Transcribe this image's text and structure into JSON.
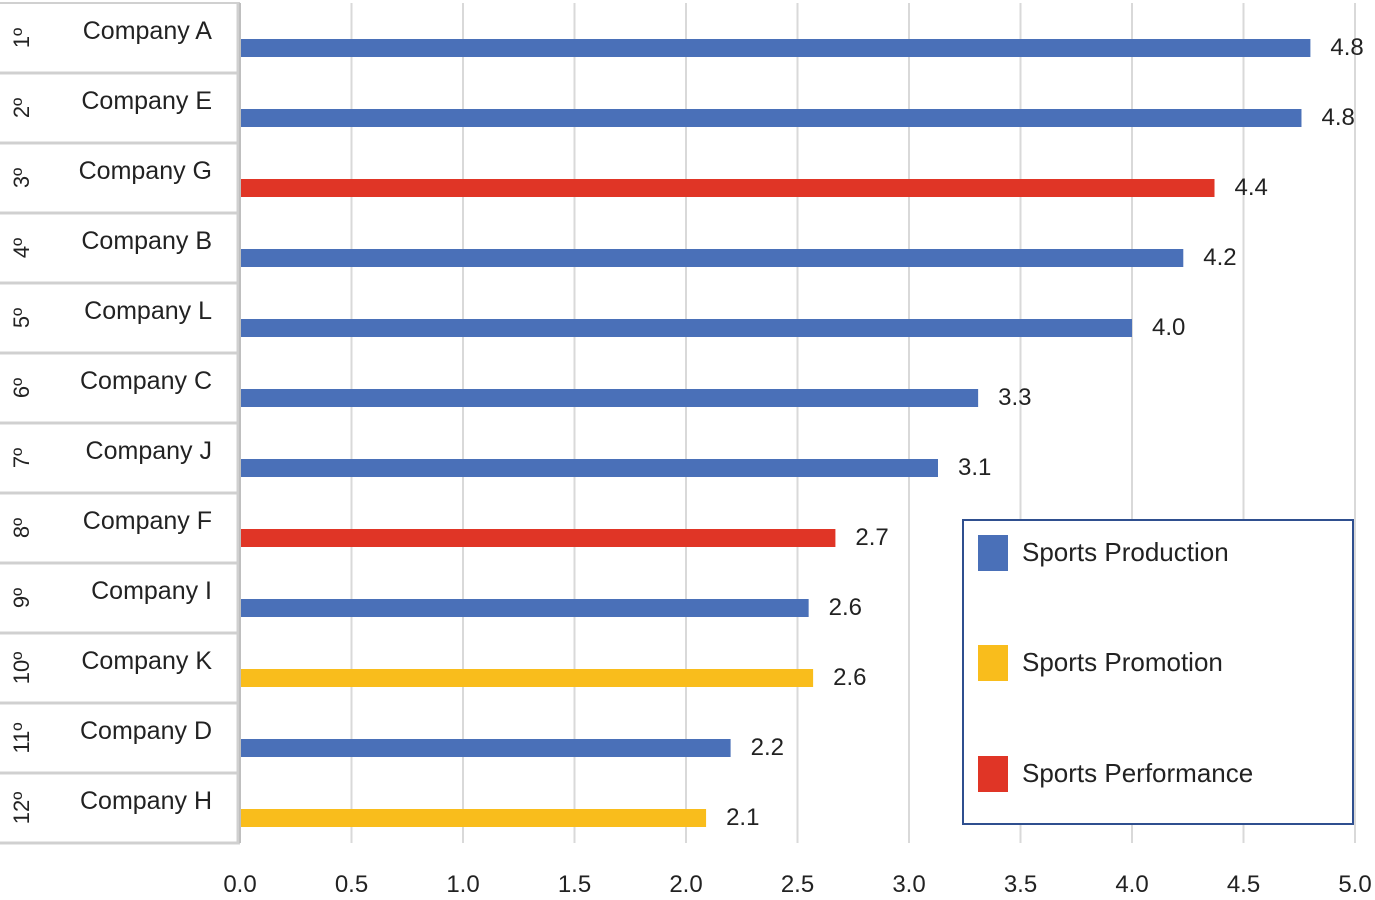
{
  "chart_data": {
    "type": "bar",
    "orientation": "horizontal",
    "rows": [
      {
        "rank": "1º",
        "company": "Company A",
        "value": 4.8,
        "label": "4.8",
        "series": "Sports Production"
      },
      {
        "rank": "2º",
        "company": "Company E",
        "value": 4.76,
        "label": "4.8",
        "series": "Sports Production"
      },
      {
        "rank": "3º",
        "company": "Company G",
        "value": 4.37,
        "label": "4.4",
        "series": "Sports Performance"
      },
      {
        "rank": "4º",
        "company": "Company B",
        "value": 4.23,
        "label": "4.2",
        "series": "Sports Production"
      },
      {
        "rank": "5º",
        "company": "Company L",
        "value": 4.0,
        "label": "4.0",
        "series": "Sports Production"
      },
      {
        "rank": "6º",
        "company": "Company C",
        "value": 3.31,
        "label": "3.3",
        "series": "Sports Production"
      },
      {
        "rank": "7º",
        "company": "Company J",
        "value": 3.13,
        "label": "3.1",
        "series": "Sports Production"
      },
      {
        "rank": "8º",
        "company": "Company F",
        "value": 2.67,
        "label": "2.7",
        "series": "Sports Performance"
      },
      {
        "rank": "9º",
        "company": "Company I",
        "value": 2.55,
        "label": "2.6",
        "series": "Sports Production"
      },
      {
        "rank": "10º",
        "company": "Company K",
        "value": 2.57,
        "label": "2.6",
        "series": "Sports Promotion"
      },
      {
        "rank": "11º",
        "company": "Company D",
        "value": 2.2,
        "label": "2.2",
        "series": "Sports Production"
      },
      {
        "rank": "12º",
        "company": "Company H",
        "value": 2.09,
        "label": "2.1",
        "series": "Sports Promotion"
      }
    ],
    "series": [
      {
        "name": "Sports Production",
        "color": "#4a70b8"
      },
      {
        "name": "Sports Promotion",
        "color": "#f9bd1c"
      },
      {
        "name": "Sports Performance",
        "color": "#e03526"
      }
    ],
    "xlim": [
      0,
      5.0
    ],
    "xticks": [
      "0.0",
      "0.5",
      "1.0",
      "1.5",
      "2.0",
      "2.5",
      "3.0",
      "3.5",
      "4.0",
      "4.5",
      "5.0"
    ],
    "grid": true,
    "legend_position": "bottom-right"
  }
}
